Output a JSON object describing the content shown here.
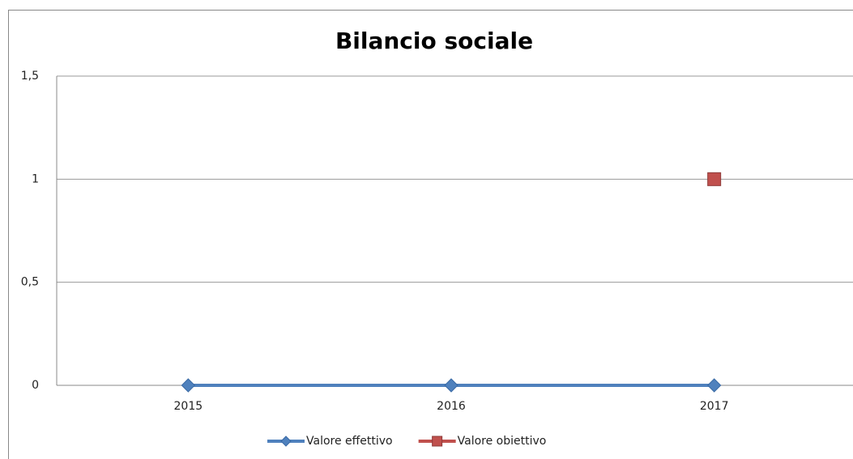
{
  "chart_data": {
    "type": "line",
    "title": "Bilancio sociale",
    "categories": [
      "2015",
      "2016",
      "2017"
    ],
    "series": [
      {
        "name": "Valore effettivo",
        "color": "#4f81bd",
        "marker": "diamond",
        "values": [
          0,
          0,
          0
        ]
      },
      {
        "name": "Valore obiettivo",
        "color": "#c0504d",
        "marker": "square",
        "values": [
          null,
          null,
          1
        ]
      }
    ],
    "ylim": [
      0,
      1.5
    ],
    "yticks": [
      0,
      {
        "value": 0.5,
        "label": "0,5"
      },
      1,
      {
        "value": 1.5,
        "label": "1,5"
      }
    ],
    "grid": true,
    "legend": "bottom"
  }
}
